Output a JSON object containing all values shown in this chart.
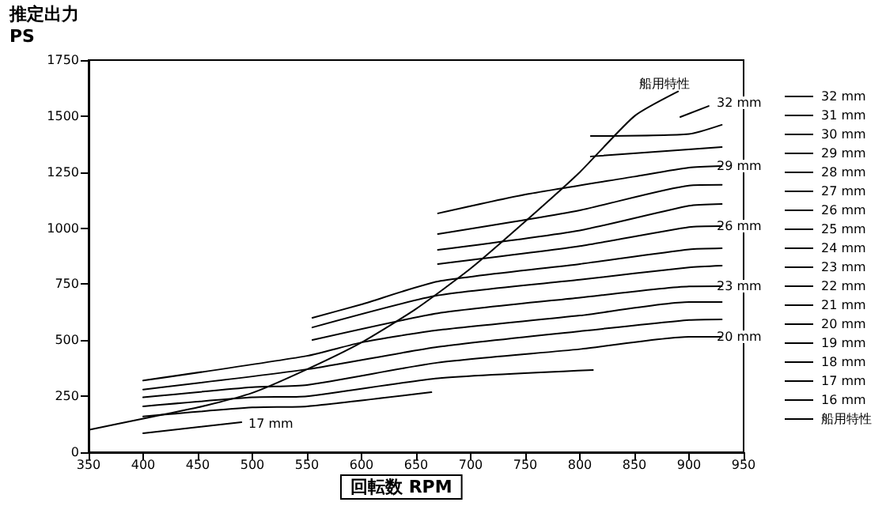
{
  "chart_data": {
    "type": "line",
    "xlabel": "回転数 RPM",
    "ylabel": "推定出力 PS",
    "xlim": [
      350,
      950
    ],
    "xticks": [
      350,
      400,
      450,
      500,
      550,
      600,
      650,
      700,
      750,
      800,
      850,
      900,
      950
    ],
    "ylim": [
      0,
      1750
    ],
    "yticks": [
      0,
      250,
      500,
      750,
      1000,
      1250,
      1500,
      1750
    ],
    "grid": false,
    "legend": "right",
    "marker": "none",
    "line_style": "solid",
    "series": [
      {
        "name": "32 mm",
        "color": "#000000",
        "x": [
          892,
          918
        ],
        "values": [
          1496,
          1545
        ]
      },
      {
        "name": "31 mm",
        "color": "#000000",
        "x": [
          810,
          900,
          930
        ],
        "values": [
          1411,
          1420,
          1461
        ]
      },
      {
        "name": "30 mm",
        "color": "#000000",
        "x": [
          810,
          930
        ],
        "values": [
          1320,
          1362
        ]
      },
      {
        "name": "29 mm",
        "color": "#000000",
        "x": [
          670,
          750,
          850,
          900,
          930
        ],
        "values": [
          1066,
          1150,
          1230,
          1270,
          1277
        ]
      },
      {
        "name": "28 mm",
        "color": "#000000",
        "x": [
          670,
          800,
          900,
          930
        ],
        "values": [
          974,
          1080,
          1190,
          1193
        ]
      },
      {
        "name": "27 mm",
        "color": "#000000",
        "x": [
          670,
          800,
          900,
          930
        ],
        "values": [
          903,
          990,
          1100,
          1108
        ]
      },
      {
        "name": "26 mm",
        "color": "#000000",
        "x": [
          670,
          800,
          900,
          930
        ],
        "values": [
          840,
          920,
          1005,
          1009
        ]
      },
      {
        "name": "25 mm",
        "color": "#000000",
        "x": [
          555,
          600,
          670,
          800,
          900,
          930
        ],
        "values": [
          600,
          660,
          762,
          840,
          905,
          910
        ]
      },
      {
        "name": "24 mm",
        "color": "#000000",
        "x": [
          555,
          670,
          800,
          900,
          930
        ],
        "values": [
          557,
          700,
          770,
          825,
          833
        ]
      },
      {
        "name": "23 mm",
        "color": "#000000",
        "x": [
          555,
          670,
          800,
          900,
          930
        ],
        "values": [
          501,
          620,
          690,
          740,
          741
        ]
      },
      {
        "name": "22 mm",
        "color": "#000000",
        "x": [
          400,
          550,
          600,
          670,
          800,
          900,
          930
        ],
        "values": [
          320,
          430,
          490,
          545,
          610,
          670,
          670
        ]
      },
      {
        "name": "21 mm",
        "color": "#000000",
        "x": [
          400,
          550,
          670,
          800,
          900,
          930
        ],
        "values": [
          280,
          370,
          470,
          540,
          590,
          593
        ]
      },
      {
        "name": "20 mm",
        "color": "#000000",
        "x": [
          400,
          500,
          550,
          670,
          800,
          900,
          930
        ],
        "values": [
          245,
          290,
          300,
          400,
          460,
          515,
          515
        ]
      },
      {
        "name": "19 mm",
        "color": "#000000",
        "x": [
          400,
          500,
          550,
          670,
          812
        ],
        "values": [
          205,
          245,
          250,
          330,
          367
        ]
      },
      {
        "name": "18 mm",
        "color": "#000000",
        "x": [
          400,
          500,
          550,
          664
        ],
        "values": [
          160,
          200,
          205,
          268
        ]
      },
      {
        "name": "17 mm",
        "color": "#000000",
        "x": [
          400,
          490
        ],
        "values": [
          85,
          134
        ]
      },
      {
        "name": "16 mm",
        "color": "#000000"
      },
      {
        "name": "船用特性",
        "color": "#000000",
        "x": [
          350,
          400,
          450,
          500,
          550,
          600,
          650,
          700,
          750,
          800,
          850,
          890
        ],
        "values": [
          100,
          150,
          200,
          265,
          370,
          490,
          640,
          820,
          1030,
          1250,
          1500,
          1610
        ]
      }
    ],
    "annotations": [
      "船用特性",
      "32 mm",
      "29 mm",
      "26 mm",
      "23 mm",
      "20 mm",
      "17 mm"
    ]
  }
}
